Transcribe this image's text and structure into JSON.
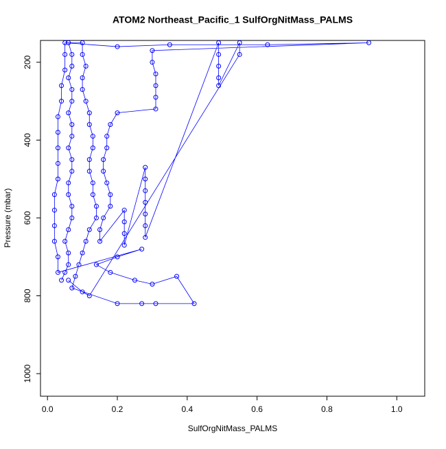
{
  "chart_data": {
    "type": "scatter",
    "title": "ATOM2 Northeast_Pacific_1 SulfOrgNitMass_PALMS",
    "x_label": "SulfOrgNitMass_PALMS",
    "y_label": "Pressure (mbar)",
    "xlim": [
      -0.02,
      1.08
    ],
    "ylim": [
      144,
      1058
    ],
    "y_reversed": true,
    "xticks": [
      {
        "value": 0,
        "label": "0.0"
      },
      0.2,
      0.4,
      0.6,
      0.8,
      {
        "value": 1,
        "label": "1.0"
      }
    ],
    "yticks": [
      200,
      400,
      600,
      800,
      1000
    ],
    "series": [
      {
        "color": "#0000ff",
        "connected": true,
        "x": [
          0.04,
          0.05,
          0.06,
          0.06,
          0.05,
          0.06,
          0.07,
          0.07,
          0.06,
          0.06,
          0.07,
          0.07,
          0.06,
          0.07,
          0.07,
          0.06,
          0.07,
          0.07,
          0.06,
          0.07,
          0.07,
          0.06,
          0.1,
          0.1,
          0.11,
          0.1,
          0.1,
          0.11,
          0.12,
          0.12,
          0.13,
          0.13,
          0.12,
          0.12,
          0.13,
          0.13,
          0.14,
          0.14,
          0.12,
          0.11,
          0.1,
          0.09,
          0.08,
          0.07,
          0.2,
          0.27,
          0.31,
          0.42,
          0.37,
          0.3,
          0.25,
          0.18,
          0.14,
          0.2,
          0.27,
          0.03,
          0.03,
          0.02,
          0.02,
          0.02,
          0.02,
          0.03,
          0.03,
          0.03,
          0.03,
          0.03,
          0.04,
          0.04,
          0.05,
          0.05,
          0.05,
          0.2,
          0.35,
          0.63,
          0.92,
          0.3,
          0.3,
          0.31,
          0.31,
          0.31,
          0.31,
          0.2,
          0.18,
          0.17,
          0.17,
          0.16,
          0.16,
          0.17,
          0.18,
          0.18,
          0.16,
          0.15,
          0.15,
          0.22,
          0.22,
          0.22,
          0.22,
          0.28,
          0.28,
          0.28,
          0.28,
          0.28,
          0.28,
          0.28,
          0.49,
          0.49,
          0.49,
          0.49,
          0.49,
          0.55,
          0.55,
          0.12,
          0.1,
          0.06
        ],
        "y": [
          760,
          740,
          720,
          690,
          660,
          630,
          600,
          570,
          540,
          510,
          480,
          450,
          420,
          390,
          360,
          330,
          300,
          270,
          240,
          210,
          180,
          150,
          150,
          180,
          210,
          240,
          270,
          300,
          330,
          360,
          390,
          420,
          450,
          480,
          510,
          540,
          570,
          600,
          630,
          660,
          690,
          720,
          750,
          780,
          820,
          820,
          820,
          820,
          750,
          770,
          760,
          740,
          720,
          700,
          680,
          740,
          700,
          660,
          620,
          580,
          540,
          500,
          460,
          420,
          380,
          340,
          300,
          260,
          220,
          180,
          150,
          160,
          155,
          155,
          150,
          170,
          200,
          230,
          260,
          290,
          320,
          330,
          360,
          390,
          420,
          450,
          480,
          510,
          540,
          570,
          600,
          630,
          660,
          580,
          610,
          640,
          670,
          470,
          500,
          530,
          560,
          590,
          620,
          650,
          150,
          180,
          210,
          240,
          260,
          150,
          180,
          800,
          790,
          760
        ]
      }
    ]
  }
}
